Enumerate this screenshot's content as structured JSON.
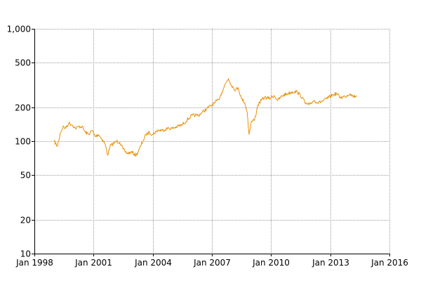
{
  "chart_data": {
    "type": "line",
    "title": "",
    "xlabel": "",
    "ylabel": "",
    "y_scale": "log",
    "grid": true,
    "legend": "none",
    "xlim": [
      "1998-01-01",
      "2016-01-01"
    ],
    "ylim": [
      10,
      1000
    ],
    "x_tick_labels": [
      "Jan 1998",
      "Jan 2001",
      "Jan 2004",
      "Jan 2007",
      "Jan 2010",
      "Jan 2013",
      "Jan 2016"
    ],
    "x_ticks": [
      "1998-01-01",
      "2001-01-01",
      "2004-01-01",
      "2007-01-01",
      "2010-01-01",
      "2013-01-01",
      "2016-01-01"
    ],
    "y_tick_labels": [
      "10",
      "20",
      "50",
      "100",
      "200",
      "500",
      "1,000"
    ],
    "y_ticks": [
      10,
      20,
      50,
      100,
      200,
      500,
      1000
    ],
    "series": [
      {
        "color": "#e8900a",
        "x": [
          "1999-01-01",
          "1999-03-01",
          "1999-05-01",
          "1999-06-15",
          "1999-08-01",
          "1999-10-01",
          "1999-12-01",
          "2000-02-01",
          "2000-04-01",
          "2000-06-01",
          "2000-08-01",
          "2000-10-01",
          "2000-12-01",
          "2001-02-01",
          "2001-04-01",
          "2001-06-01",
          "2001-08-01",
          "2001-09-20",
          "2001-11-01",
          "2002-01-01",
          "2002-03-01",
          "2002-05-01",
          "2002-07-01",
          "2002-08-15",
          "2002-10-01",
          "2002-12-01",
          "2003-03-01",
          "2003-05-01",
          "2003-07-01",
          "2003-09-01",
          "2003-11-01",
          "2004-01-01",
          "2004-04-01",
          "2004-07-01",
          "2004-10-01",
          "2005-01-01",
          "2005-04-01",
          "2005-07-01",
          "2005-10-01",
          "2006-01-01",
          "2006-05-01",
          "2006-07-01",
          "2006-10-01",
          "2007-01-01",
          "2007-03-01",
          "2007-05-01",
          "2007-07-01",
          "2007-09-01",
          "2007-11-01",
          "2008-01-01",
          "2008-02-01",
          "2008-03-15",
          "2008-05-01",
          "2008-07-01",
          "2008-09-01",
          "2008-10-15",
          "2008-11-20",
          "2009-01-01",
          "2009-03-01",
          "2009-05-01",
          "2009-07-01",
          "2009-09-01",
          "2009-12-01",
          "2010-03-01",
          "2010-05-01",
          "2010-08-01",
          "2010-11-01",
          "2011-02-01",
          "2011-05-01",
          "2011-08-01",
          "2011-10-01",
          "2011-12-01",
          "2012-03-01",
          "2012-06-01",
          "2012-09-01",
          "2012-12-01",
          "2013-03-01",
          "2013-05-01",
          "2013-07-01",
          "2013-10-01",
          "2014-01-01",
          "2014-03-01",
          "2014-05-01"
        ],
        "y": [
          100,
          90,
          120,
          135,
          130,
          145,
          140,
          130,
          135,
          135,
          120,
          115,
          125,
          110,
          115,
          105,
          95,
          75,
          90,
          95,
          100,
          98,
          85,
          80,
          78,
          80,
          75,
          85,
          100,
          115,
          120,
          115,
          125,
          125,
          130,
          130,
          135,
          140,
          155,
          170,
          170,
          180,
          195,
          210,
          220,
          235,
          270,
          320,
          360,
          315,
          300,
          285,
          300,
          240,
          220,
          180,
          115,
          150,
          155,
          210,
          230,
          245,
          240,
          255,
          230,
          255,
          265,
          275,
          275,
          245,
          215,
          210,
          230,
          220,
          230,
          245,
          260,
          265,
          245,
          250,
          265,
          250,
          255
        ]
      }
    ]
  }
}
